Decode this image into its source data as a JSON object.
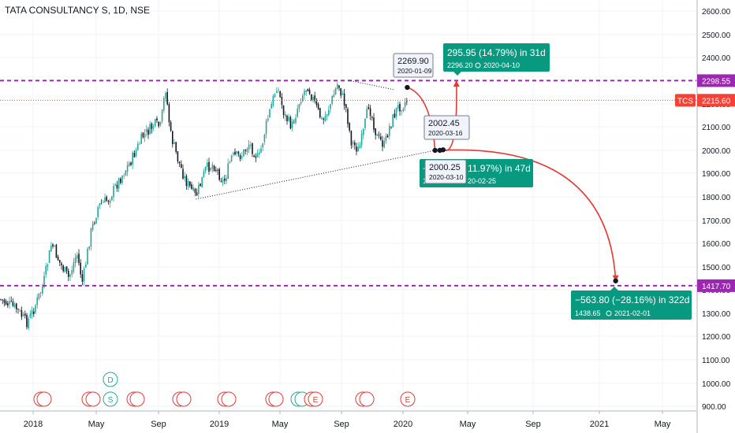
{
  "chart_data": {
    "type": "candlestick",
    "title": "TATA CONSULTANCY S, 1D, NSE",
    "price_axis": {
      "ticks": [
        "2600.00",
        "2500.00",
        "2400.00",
        "2300.00",
        "2200.00",
        "2100.00",
        "2000.00",
        "1900.00",
        "1800.00",
        "1700.00",
        "1600.00",
        "1500.00",
        "1400.00",
        "1300.00",
        "1200.00",
        "1100.00",
        "1000.00",
        "900.00"
      ],
      "ylim": [
        870,
        2680
      ],
      "log_scale": false
    },
    "time_axis": {
      "ticks": [
        "2018",
        "May",
        "Sep",
        "2019",
        "May",
        "Sep",
        "2020",
        "May",
        "Sep",
        "2021",
        "May"
      ]
    },
    "price_points": [
      [
        "2017-11-01",
        1360
      ],
      [
        "2017-12-01",
        1320
      ],
      [
        "2017-12-20",
        1260
      ],
      [
        "2018-01-01",
        1310
      ],
      [
        "2018-01-20",
        1420
      ],
      [
        "2018-02-05",
        1600
      ],
      [
        "2018-02-20",
        1520
      ],
      [
        "2018-03-10",
        1450
      ],
      [
        "2018-03-25",
        1560
      ],
      [
        "2018-04-05",
        1430
      ],
      [
        "2018-04-20",
        1640
      ],
      [
        "2018-05-05",
        1760
      ],
      [
        "2018-05-25",
        1790
      ],
      [
        "2018-06-15",
        1870
      ],
      [
        "2018-07-10",
        1960
      ],
      [
        "2018-08-01",
        2060
      ],
      [
        "2018-08-25",
        2110
      ],
      [
        "2018-09-05",
        2100
      ],
      [
        "2018-09-15",
        2270
      ],
      [
        "2018-09-25",
        2070
      ],
      [
        "2018-10-10",
        1960
      ],
      [
        "2018-10-25",
        1870
      ],
      [
        "2018-11-15",
        1800
      ],
      [
        "2018-12-05",
        1920
      ],
      [
        "2018-12-20",
        1940
      ],
      [
        "2019-01-10",
        1860
      ],
      [
        "2019-01-25",
        1970
      ],
      [
        "2019-02-15",
        1980
      ],
      [
        "2019-03-01",
        2030
      ],
      [
        "2019-03-20",
        1960
      ],
      [
        "2019-04-05",
        2120
      ],
      [
        "2019-04-25",
        2280
      ],
      [
        "2019-05-10",
        2150
      ],
      [
        "2019-05-25",
        2100
      ],
      [
        "2019-06-10",
        2220
      ],
      [
        "2019-06-25",
        2280
      ],
      [
        "2019-07-10",
        2200
      ],
      [
        "2019-07-25",
        2120
      ],
      [
        "2019-08-10",
        2200
      ],
      [
        "2019-08-25",
        2290
      ],
      [
        "2019-09-10",
        2180
      ],
      [
        "2019-09-20",
        2040
      ],
      [
        "2019-10-05",
        2000
      ],
      [
        "2019-10-15",
        2080
      ],
      [
        "2019-10-25",
        2200
      ],
      [
        "2019-11-10",
        2060
      ],
      [
        "2019-11-25",
        2020
      ],
      [
        "2019-12-05",
        2100
      ],
      [
        "2019-12-20",
        2180
      ],
      [
        "2020-01-01",
        2200
      ],
      [
        "2020-01-09",
        2215.6
      ]
    ],
    "series": [
      {
        "name": "TCS",
        "last": "2215.60"
      }
    ],
    "horizontal_lines": [
      {
        "label": "2298.55",
        "value": 2298.55,
        "color": "#9c27b0"
      },
      {
        "label": "1417.70",
        "value": 1417.7,
        "color": "#9c27b0"
      }
    ],
    "last_price_line": {
      "value": 2215.6,
      "color": "#f44336"
    },
    "trendlines": [
      {
        "from": [
          "2018-11-15",
          1790
        ],
        "to": [
          "2020-03-01",
          2000
        ]
      },
      {
        "from": [
          "2019-09-15",
          2300
        ],
        "to": [
          "2019-12-15",
          2260
        ]
      }
    ],
    "projection_points": [
      {
        "date": "2020-01-09",
        "value": 2269.9
      },
      {
        "date": "2020-03-01",
        "value": 2000.0
      },
      {
        "date": "2020-03-10",
        "value": 2000.25
      },
      {
        "date": "2020-03-16",
        "value": 2002.45
      },
      {
        "date": "2020-04-10",
        "value": 2296.2
      },
      {
        "date": "2021-02-01",
        "value": 1438.65
      }
    ],
    "tags": [
      {
        "value": "2269.90",
        "date": "2020-01-09"
      },
      {
        "value": "2002.45",
        "date": "2020-03-16"
      },
      {
        "value": "2000.25",
        "date": "2020-03-10"
      }
    ],
    "callouts": [
      {
        "main": "295.95 (14.79%) in 31d",
        "sub": "2296.20",
        "date": "2020-04-10"
      },
      {
        "main_left": "−",
        "main_right": "11.97%) in 47d",
        "sub_left": "1",
        "sub_date": "20-02-25"
      },
      {
        "main": "−563.80 (−28.16%) in 322d",
        "sub": "1438.65",
        "date": "2021-02-01"
      }
    ],
    "events": [
      "E",
      "E",
      "E",
      "E",
      "E",
      "E",
      "E",
      "E",
      "D",
      "D",
      "S"
    ],
    "colors": {
      "up": "#26a69a",
      "down": "#131722",
      "callout": "#089981",
      "level": "#9c27b0",
      "price": "#f44336",
      "arrow": "#e53935"
    }
  }
}
